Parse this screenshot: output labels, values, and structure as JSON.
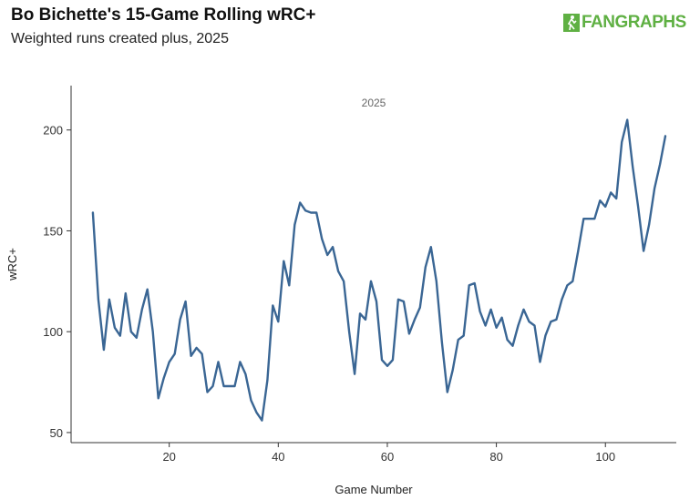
{
  "header": {
    "title": "Bo Bichette's 15-Game Rolling wRC+",
    "subtitle": "Weighted runs created plus, 2025",
    "logo_text": "FANGRAPHS",
    "logo_icon": "fangraphs-logo-icon"
  },
  "colors": {
    "line": "#3a6694",
    "axis": "#333333",
    "logo": "#5fb043"
  },
  "chart_data": {
    "type": "line",
    "title": "Bo Bichette's 15-Game Rolling wRC+",
    "subtitle": "Weighted runs created plus, 2025",
    "xlabel": "Game Number",
    "ylabel": "wRC+",
    "panel_label": "2025",
    "xlim": [
      2,
      113
    ],
    "ylim": [
      45,
      222
    ],
    "xticks": [
      20,
      40,
      60,
      80,
      100
    ],
    "yticks": [
      50,
      100,
      150,
      200
    ],
    "grid": false,
    "legend": "none",
    "series": [
      {
        "x": [
          6,
          7,
          8,
          9,
          10,
          11,
          12,
          13,
          14,
          15,
          16,
          17,
          18,
          19,
          20,
          21,
          22,
          23,
          24,
          25,
          26,
          27,
          28,
          29,
          30,
          31,
          32,
          33,
          34,
          35,
          36,
          37,
          38,
          39,
          40,
          41,
          42,
          43,
          44,
          45,
          46,
          47,
          48,
          49,
          50,
          51,
          52,
          53,
          54,
          55,
          56,
          57,
          58,
          59,
          60,
          61,
          62,
          63,
          64,
          65,
          66,
          67,
          68,
          69,
          70,
          71,
          72,
          73,
          74,
          75,
          76,
          77,
          78,
          79,
          80,
          81,
          82,
          83,
          84,
          85,
          86,
          87,
          88,
          89,
          90,
          91,
          92,
          93,
          94,
          95,
          96,
          97,
          98,
          99,
          100,
          101,
          102,
          103,
          104,
          105,
          106,
          107,
          108,
          109,
          110,
          111
        ],
        "values": [
          159,
          116,
          91,
          116,
          102,
          98,
          119,
          100,
          97,
          111,
          121,
          100,
          67,
          77,
          85,
          89,
          106,
          115,
          88,
          92,
          89,
          70,
          73,
          85,
          73,
          73,
          73,
          85,
          79,
          66,
          60,
          56,
          76,
          113,
          105,
          135,
          123,
          153,
          164,
          160,
          159,
          159,
          146,
          138,
          142,
          130,
          125,
          100,
          79,
          109,
          106,
          125,
          115,
          86,
          83,
          86,
          116,
          115,
          99,
          106,
          112,
          132,
          142,
          125,
          95,
          70,
          81,
          96,
          98,
          123,
          124,
          110,
          103,
          111,
          102,
          107,
          96,
          93,
          103,
          111,
          105,
          103,
          85,
          98,
          105,
          106,
          116,
          123,
          125,
          140,
          156,
          156,
          156,
          165,
          162,
          169,
          166,
          194,
          205,
          182,
          162,
          140,
          153,
          171,
          183,
          197
        ]
      }
    ]
  }
}
